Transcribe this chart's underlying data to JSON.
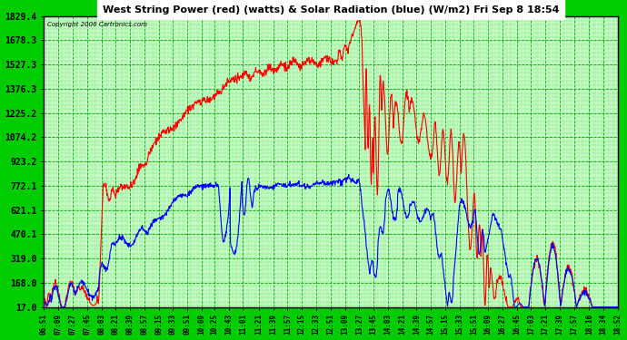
{
  "title": "West String Power (red) (watts) & Solar Radiation (blue) (W/m2) Fri Sep 8 18:54",
  "copyright": "Copyright 2006 Cartronics.com",
  "background_color": "#00cc00",
  "plot_bg_color": "#ccffcc",
  "grid_major_color": "#00bb00",
  "grid_minor_color": "#009900",
  "title_bg_color": "#ffffff",
  "title_text_color": "#000000",
  "yticks": [
    17.0,
    168.0,
    319.0,
    470.1,
    621.1,
    772.1,
    923.2,
    1074.2,
    1225.2,
    1376.3,
    1527.3,
    1678.3,
    1829.4
  ],
  "ymin": 17.0,
  "ymax": 1829.4,
  "xtick_labels": [
    "06:51",
    "07:09",
    "07:27",
    "07:45",
    "08:03",
    "08:21",
    "08:39",
    "08:57",
    "09:15",
    "09:33",
    "09:51",
    "10:09",
    "10:25",
    "10:43",
    "11:01",
    "11:21",
    "11:39",
    "11:57",
    "12:15",
    "12:33",
    "12:51",
    "13:09",
    "13:27",
    "13:45",
    "14:03",
    "14:21",
    "14:39",
    "14:57",
    "15:15",
    "15:33",
    "15:51",
    "16:09",
    "16:27",
    "16:45",
    "17:03",
    "17:21",
    "17:39",
    "17:57",
    "18:16",
    "18:34",
    "18:52"
  ],
  "red_line_color": "#ff0000",
  "blue_line_color": "#0000ff",
  "line_width": 0.8
}
